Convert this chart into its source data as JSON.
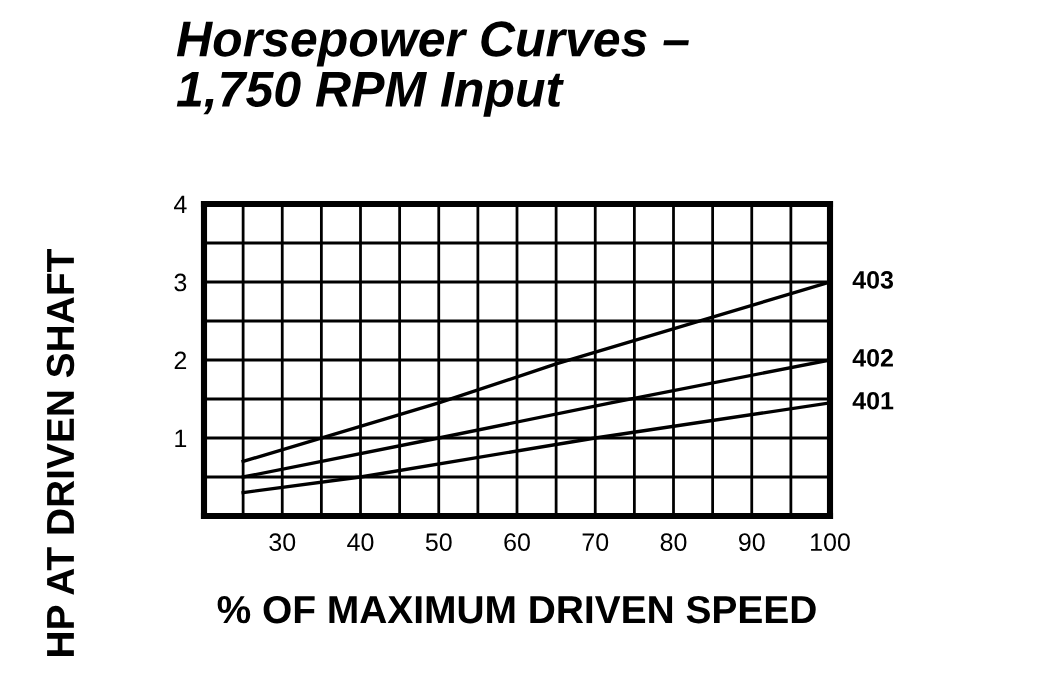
{
  "chart_data": {
    "type": "line",
    "title": "Horsepower Curves –\n1,750 RPM Input",
    "xlabel": "% OF MAXIMUM DRIVEN SPEED",
    "ylabel": "HP AT DRIVEN SHAFT",
    "series": [
      {
        "name": "403",
        "color": "#000000",
        "x": [
          25,
          50,
          65,
          100
        ],
        "values": [
          0.7,
          1.45,
          1.95,
          3.0
        ]
      },
      {
        "name": "402",
        "color": "#000000",
        "x": [
          25,
          50,
          72,
          100
        ],
        "values": [
          0.5,
          1.0,
          1.45,
          2.0
        ]
      },
      {
        "name": "401",
        "color": "#000000",
        "x": [
          25,
          40,
          70,
          100
        ],
        "values": [
          0.3,
          0.5,
          1.0,
          1.45
        ]
      }
    ],
    "xlim": [
      20,
      100
    ],
    "ylim": [
      0,
      4
    ],
    "xticks": [
      {
        "value": 25,
        "label": null
      },
      30,
      {
        "value": 35,
        "label": null
      },
      40,
      {
        "value": 45,
        "label": null
      },
      50,
      {
        "value": 55,
        "label": null
      },
      60,
      {
        "value": 65,
        "label": null
      },
      70,
      {
        "value": 75,
        "label": null
      },
      80,
      {
        "value": 85,
        "label": null
      },
      90,
      {
        "value": 95,
        "label": null
      },
      100
    ],
    "yticks": [
      {
        "value": 0.5,
        "label": null
      },
      1,
      {
        "value": 1.5,
        "label": null
      },
      2,
      {
        "value": 2.5,
        "label": null
      },
      3,
      {
        "value": 3.5,
        "label": null
      },
      4
    ],
    "grid": true,
    "legend": false,
    "marker": "none",
    "line_style": "solid"
  }
}
